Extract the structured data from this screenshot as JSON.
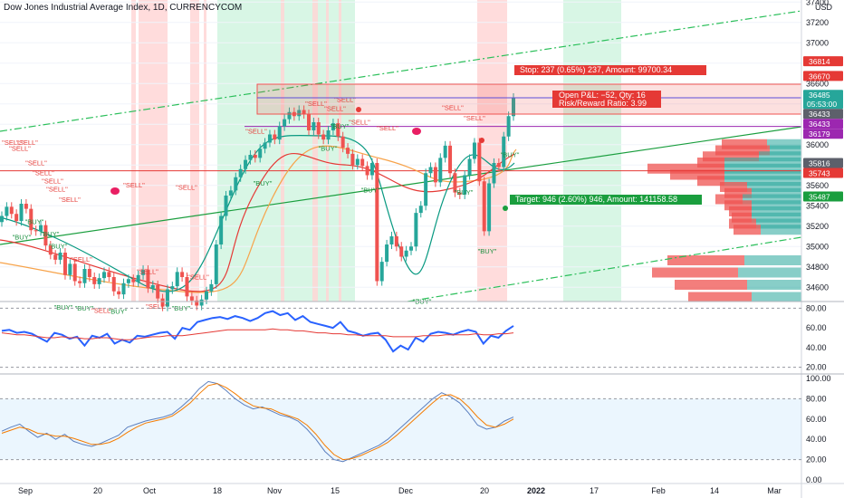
{
  "header": {
    "title": "Dow Jones Industrial Average Index, 1D, CURRENCYCOM",
    "currency": "USD"
  },
  "colors": {
    "up": "#26a69a",
    "down": "#ef5350",
    "green_zone": "#d1f5e1",
    "red_zone": "#ffd6d6",
    "trend_green": "#1a9e3e",
    "horizontal_red": "#e53935",
    "horizontal_purple": "#9c27b0",
    "ma_teal": "#089981",
    "ma_red": "#e53935",
    "ma_orange": "#f7a34a",
    "osc_blue": "#2962ff",
    "osc_red": "#e53935",
    "stoch_blue": "#5b7fbf",
    "stoch_orange": "#f57c00"
  },
  "chart_data": [
    {
      "type": "candlestick",
      "title": "Dow Jones Industrial Average Index, 1D, CURRENCYCOM",
      "y_unit": "USD",
      "ylim": [
        34460,
        37420
      ],
      "x_ticks": [
        "Sep",
        "20",
        "Oct",
        "18",
        "Nov",
        "15",
        "Dec",
        "20",
        "2022",
        "17",
        "Feb",
        "14",
        "Mar"
      ],
      "y_ticks": [
        "37400",
        "37200",
        "37000",
        "36800",
        "36600",
        "36400",
        "36200",
        "36000",
        "35800",
        "35600",
        "35400",
        "35200",
        "35000",
        "34800",
        "34600"
      ],
      "price_tags": [
        {
          "value": "36814",
          "color": "#e53935"
        },
        {
          "value": "36670",
          "color": "#e53935"
        },
        {
          "value": "36485",
          "sub": "05:53:00",
          "color": "#26a69a"
        },
        {
          "value": "36433",
          "color": "#5d606b"
        },
        {
          "value": "36433",
          "color": "#9c27b0"
        },
        {
          "value": "36179",
          "color": "#9c27b0"
        },
        {
          "value": "35816",
          "color": "#5d606b"
        },
        {
          "value": "35743",
          "color": "#e53935"
        },
        {
          "value": "35487",
          "color": "#1a9e3e"
        }
      ],
      "annotations": {
        "stop": "Stop: 237 (0.65%) 237, Amount: 99700.34",
        "pnl_line1": "Open P&L: −52, Qty: 16",
        "pnl_line2": "Risk/Reward Ratio: 3.99",
        "target": "Target: 946 (2.60%) 946, Amount: 141158.58"
      },
      "signals": [
        {
          "label": "\"SELL\"",
          "x": 14,
          "y": 36000
        },
        {
          "label": "\"SELL\"",
          "x": 22,
          "y": 35940
        },
        {
          "label": "\"SELL\"",
          "x": 30,
          "y": 36000
        },
        {
          "label": "\"SELL\"",
          "x": 40,
          "y": 35800
        },
        {
          "label": "\"SELL\"",
          "x": 48,
          "y": 35700
        },
        {
          "label": "\"SELL\"",
          "x": 58,
          "y": 35620
        },
        {
          "label": "\"SELL\"",
          "x": 63,
          "y": 35540
        },
        {
          "label": "\"SELL\"",
          "x": 77,
          "y": 35440
        },
        {
          "label": "\"BUY\"",
          "x": 24,
          "y": 35070
        },
        {
          "label": "\"BUY\"",
          "x": 38,
          "y": 35220
        },
        {
          "label": "\"BUY\"",
          "x": 55,
          "y": 35100
        },
        {
          "label": "\"BUY\"",
          "x": 64,
          "y": 34980
        },
        {
          "label": "\"BUY\"",
          "x": 70,
          "y": 34380
        },
        {
          "label": "\"SELL\"",
          "x": 90,
          "y": 34850
        },
        {
          "label": "\"BUY\"",
          "x": 93,
          "y": 34370
        },
        {
          "label": "\"SELL\"",
          "x": 113,
          "y": 34350
        },
        {
          "label": "\"BUY\"",
          "x": 130,
          "y": 34340
        },
        {
          "label": "\"SELL\"",
          "x": 148,
          "y": 35580
        },
        {
          "label": "\"SELL\"",
          "x": 163,
          "y": 34730
        },
        {
          "label": "\"SELL\"",
          "x": 173,
          "y": 34390
        },
        {
          "label": "\"BUY\"",
          "x": 200,
          "y": 34370
        },
        {
          "label": "\"SELL\"",
          "x": 206,
          "y": 35560
        },
        {
          "label": "\"SELL\"",
          "x": 219,
          "y": 34680
        },
        {
          "label": "\"SELL\"",
          "x": 283,
          "y": 36110
        },
        {
          "label": "\"BUY\"",
          "x": 290,
          "y": 35600
        },
        {
          "label": "\"SELL\"",
          "x": 349,
          "y": 36380
        },
        {
          "label": "\"SELL\"",
          "x": 370,
          "y": 36330
        },
        {
          "label": "\"SELL\"",
          "x": 381,
          "y": 36420
        },
        {
          "label": "\"BUY\"",
          "x": 375,
          "y": 36160
        },
        {
          "label": "\"BUY\"",
          "x": 362,
          "y": 35940
        },
        {
          "label": "\"SELL\"",
          "x": 397,
          "y": 36200
        },
        {
          "label": "\"BUY\"",
          "x": 409,
          "y": 35530
        },
        {
          "label": "\"SELL\"",
          "x": 428,
          "y": 36140
        },
        {
          "label": "\"SELL\"",
          "x": 500,
          "y": 36340
        },
        {
          "label": "\"BUY\"",
          "x": 466,
          "y": 34440
        },
        {
          "label": "\"SELL\"",
          "x": 524,
          "y": 36240
        },
        {
          "label": "\"BUY\"",
          "x": 512,
          "y": 35510
        },
        {
          "label": "\"BUY\"",
          "x": 538,
          "y": 34930
        },
        {
          "label": "\"BUY\"",
          "x": 563,
          "y": 35880
        }
      ]
    },
    {
      "type": "line",
      "title": "",
      "ylim": [
        16,
        84
      ],
      "y_ticks": [
        "80.00",
        "60.00",
        "40.00",
        "20.00"
      ],
      "series": [
        {
          "color": "#2962ff",
          "values": [
            57,
            58,
            55,
            56,
            54,
            50,
            46,
            55,
            53,
            49,
            51,
            42,
            52,
            50,
            54,
            44,
            48,
            45,
            52,
            51,
            53,
            55,
            56,
            49,
            60,
            58,
            66,
            68,
            70,
            71,
            69,
            72,
            70,
            67,
            70,
            75,
            77,
            73,
            75,
            68,
            72,
            66,
            64,
            62,
            60,
            66,
            57,
            55,
            52,
            54,
            55,
            48,
            36,
            42,
            38,
            50,
            46,
            54,
            56,
            55,
            53,
            56,
            58,
            56,
            44,
            52,
            50,
            57,
            62
          ]
        },
        {
          "color": "#e53935",
          "values": [
            55,
            54,
            53,
            53,
            52,
            51,
            50,
            50,
            51,
            50,
            50,
            49,
            49,
            50,
            50,
            49,
            48,
            48,
            49,
            50,
            51,
            51,
            52,
            52,
            52,
            53,
            54,
            55,
            56,
            57,
            58,
            58,
            58,
            58,
            58,
            58,
            59,
            58,
            58,
            57,
            57,
            56,
            55,
            55,
            54,
            54,
            53,
            53,
            52,
            52,
            52,
            52,
            51,
            51,
            51,
            51,
            52,
            52,
            52,
            53,
            53,
            53,
            53,
            54,
            53,
            53,
            54,
            54,
            55
          ]
        }
      ]
    },
    {
      "type": "line",
      "title": "",
      "ylim": [
        0,
        100
      ],
      "y_ticks": [
        "100.00",
        "80.00",
        "60.00",
        "40.00",
        "20.00",
        "0.00"
      ],
      "series": [
        {
          "color": "#5b7fbf",
          "values": [
            48,
            52,
            55,
            48,
            42,
            46,
            40,
            45,
            38,
            35,
            33,
            36,
            40,
            44,
            52,
            55,
            58,
            60,
            62,
            65,
            72,
            80,
            90,
            97,
            95,
            88,
            80,
            74,
            70,
            72,
            68,
            64,
            62,
            58,
            50,
            40,
            28,
            20,
            18,
            22,
            26,
            30,
            34,
            40,
            48,
            56,
            64,
            72,
            80,
            86,
            82,
            76,
            66,
            54,
            50,
            52,
            58,
            62
          ]
        },
        {
          "color": "#f57c00",
          "values": [
            46,
            49,
            52,
            50,
            46,
            45,
            43,
            43,
            41,
            38,
            35,
            35,
            37,
            41,
            47,
            52,
            56,
            58,
            60,
            63,
            69,
            76,
            85,
            93,
            95,
            91,
            85,
            78,
            73,
            71,
            70,
            66,
            63,
            60,
            54,
            45,
            34,
            25,
            20,
            21,
            24,
            28,
            32,
            37,
            44,
            52,
            60,
            68,
            76,
            83,
            84,
            80,
            72,
            62,
            54,
            52,
            55,
            60
          ]
        }
      ]
    }
  ]
}
